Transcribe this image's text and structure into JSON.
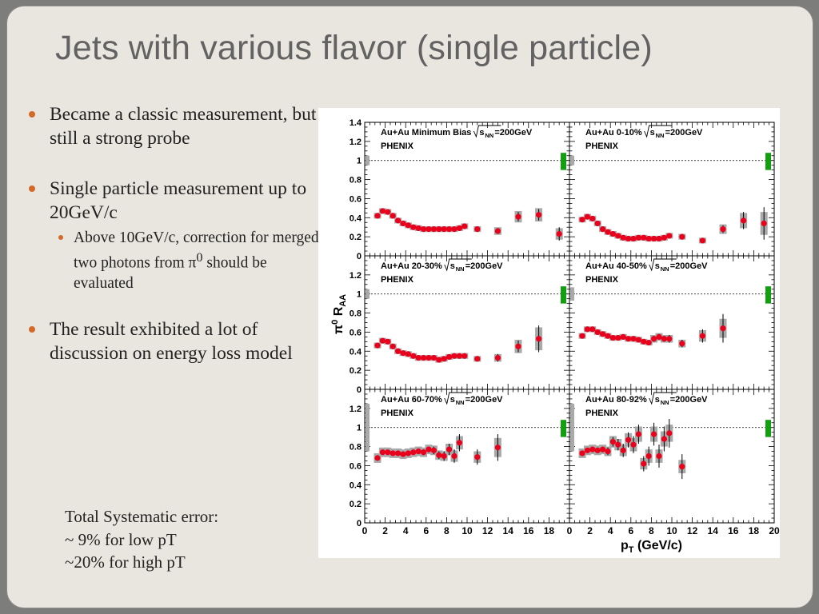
{
  "slide": {
    "title": "Jets with various flavor (single particle)",
    "bullets": [
      "Became a classic measurement, but still a strong probe",
      "Single particle measurement up to 20GeV/c",
      "Above 10GeV/c, correction for merged two photons from π",
      "The result exhibited a lot of discussion on energy loss model"
    ],
    "sub_suffix": " should be evaluated",
    "sup0": "0",
    "note": [
      "Total Systematic error:",
      "~ 9% for low pT",
      "~20% for high pT"
    ]
  },
  "chart_data": {
    "type": "scatter",
    "ylabel": "π0 RAA",
    "xlabel": "pT (GeV/c)",
    "xlim": [
      0,
      20
    ],
    "ylim": [
      0,
      1.4
    ],
    "reference_line": 1,
    "colors": {
      "points": "#e8001c",
      "syst_box": "#a9a9a9",
      "norm_box_right": "#12a012",
      "norm_box_left": "#a9a9a9"
    },
    "x_tick_labels_left": [
      "0",
      "2",
      "4",
      "6",
      "8",
      "10",
      "12",
      "14",
      "16",
      "18"
    ],
    "x_tick_labels_right": [
      "0",
      "2",
      "4",
      "6",
      "8",
      "10",
      "12",
      "14",
      "16",
      "18",
      "20"
    ],
    "y_tick_labels": [
      "0",
      "0.2",
      "0.4",
      "0.6",
      "0.8",
      "1",
      "1.2",
      "1.4"
    ],
    "panels": [
      {
        "label": "Au+Au Minimum Bias",
        "energy": "=200GeV",
        "experiment": "PHENIX",
        "norm_left": [
          0.95,
          1.05
        ],
        "norm_right": [
          0.9,
          1.08
        ],
        "points": [
          {
            "x": 1.25,
            "y": 0.42,
            "syst": 0.03,
            "err": 0.01
          },
          {
            "x": 1.75,
            "y": 0.47,
            "syst": 0.03,
            "err": 0.01
          },
          {
            "x": 2.25,
            "y": 0.46,
            "syst": 0.03,
            "err": 0.01
          },
          {
            "x": 2.75,
            "y": 0.42,
            "syst": 0.03,
            "err": 0.01
          },
          {
            "x": 3.25,
            "y": 0.37,
            "syst": 0.03,
            "err": 0.01
          },
          {
            "x": 3.75,
            "y": 0.34,
            "syst": 0.03,
            "err": 0.01
          },
          {
            "x": 4.25,
            "y": 0.32,
            "syst": 0.03,
            "err": 0.01
          },
          {
            "x": 4.75,
            "y": 0.3,
            "syst": 0.03,
            "err": 0.01
          },
          {
            "x": 5.25,
            "y": 0.29,
            "syst": 0.03,
            "err": 0.01
          },
          {
            "x": 5.75,
            "y": 0.28,
            "syst": 0.03,
            "err": 0.01
          },
          {
            "x": 6.25,
            "y": 0.28,
            "syst": 0.03,
            "err": 0.01
          },
          {
            "x": 6.75,
            "y": 0.28,
            "syst": 0.03,
            "err": 0.01
          },
          {
            "x": 7.25,
            "y": 0.28,
            "syst": 0.03,
            "err": 0.01
          },
          {
            "x": 7.75,
            "y": 0.28,
            "syst": 0.03,
            "err": 0.01
          },
          {
            "x": 8.25,
            "y": 0.28,
            "syst": 0.03,
            "err": 0.01
          },
          {
            "x": 8.75,
            "y": 0.28,
            "syst": 0.03,
            "err": 0.01
          },
          {
            "x": 9.25,
            "y": 0.29,
            "syst": 0.03,
            "err": 0.01
          },
          {
            "x": 9.75,
            "y": 0.31,
            "syst": 0.03,
            "err": 0.02
          },
          {
            "x": 11,
            "y": 0.28,
            "syst": 0.03,
            "err": 0.02
          },
          {
            "x": 13,
            "y": 0.26,
            "syst": 0.04,
            "err": 0.03
          },
          {
            "x": 15,
            "y": 0.41,
            "syst": 0.06,
            "err": 0.05
          },
          {
            "x": 17,
            "y": 0.43,
            "syst": 0.07,
            "err": 0.06
          },
          {
            "x": 19,
            "y": 0.23,
            "syst": 0.06,
            "err": 0.07
          }
        ]
      },
      {
        "label": "Au+Au 0-10%",
        "energy": "=200GeV",
        "experiment": "PHENIX",
        "norm_left": [
          0.95,
          1.05
        ],
        "norm_right": [
          0.9,
          1.08
        ],
        "points": [
          {
            "x": 1.25,
            "y": 0.38,
            "syst": 0.03,
            "err": 0.01
          },
          {
            "x": 1.75,
            "y": 0.41,
            "syst": 0.03,
            "err": 0.01
          },
          {
            "x": 2.25,
            "y": 0.39,
            "syst": 0.03,
            "err": 0.01
          },
          {
            "x": 2.75,
            "y": 0.34,
            "syst": 0.03,
            "err": 0.01
          },
          {
            "x": 3.25,
            "y": 0.28,
            "syst": 0.03,
            "err": 0.01
          },
          {
            "x": 3.75,
            "y": 0.25,
            "syst": 0.03,
            "err": 0.01
          },
          {
            "x": 4.25,
            "y": 0.23,
            "syst": 0.03,
            "err": 0.01
          },
          {
            "x": 4.75,
            "y": 0.21,
            "syst": 0.03,
            "err": 0.01
          },
          {
            "x": 5.25,
            "y": 0.19,
            "syst": 0.03,
            "err": 0.01
          },
          {
            "x": 5.75,
            "y": 0.18,
            "syst": 0.03,
            "err": 0.01
          },
          {
            "x": 6.25,
            "y": 0.18,
            "syst": 0.03,
            "err": 0.01
          },
          {
            "x": 6.75,
            "y": 0.19,
            "syst": 0.03,
            "err": 0.01
          },
          {
            "x": 7.25,
            "y": 0.19,
            "syst": 0.03,
            "err": 0.01
          },
          {
            "x": 7.75,
            "y": 0.18,
            "syst": 0.03,
            "err": 0.01
          },
          {
            "x": 8.25,
            "y": 0.18,
            "syst": 0.03,
            "err": 0.01
          },
          {
            "x": 8.75,
            "y": 0.18,
            "syst": 0.03,
            "err": 0.01
          },
          {
            "x": 9.25,
            "y": 0.19,
            "syst": 0.03,
            "err": 0.01
          },
          {
            "x": 9.75,
            "y": 0.21,
            "syst": 0.03,
            "err": 0.02
          },
          {
            "x": 11,
            "y": 0.2,
            "syst": 0.03,
            "err": 0.02
          },
          {
            "x": 13,
            "y": 0.16,
            "syst": 0.03,
            "err": 0.02
          },
          {
            "x": 15,
            "y": 0.28,
            "syst": 0.05,
            "err": 0.04
          },
          {
            "x": 17,
            "y": 0.37,
            "syst": 0.08,
            "err": 0.09
          },
          {
            "x": 19,
            "y": 0.34,
            "syst": 0.12,
            "err": 0.17
          }
        ]
      },
      {
        "label": "Au+Au 20-30%",
        "energy": "=200GeV",
        "experiment": "PHENIX",
        "norm_left": [
          0.95,
          1.05
        ],
        "norm_right": [
          0.9,
          1.08
        ],
        "points": [
          {
            "x": 1.25,
            "y": 0.46,
            "syst": 0.03,
            "err": 0.01
          },
          {
            "x": 1.75,
            "y": 0.51,
            "syst": 0.03,
            "err": 0.01
          },
          {
            "x": 2.25,
            "y": 0.5,
            "syst": 0.03,
            "err": 0.01
          },
          {
            "x": 2.75,
            "y": 0.45,
            "syst": 0.03,
            "err": 0.01
          },
          {
            "x": 3.25,
            "y": 0.4,
            "syst": 0.03,
            "err": 0.01
          },
          {
            "x": 3.75,
            "y": 0.38,
            "syst": 0.03,
            "err": 0.01
          },
          {
            "x": 4.25,
            "y": 0.37,
            "syst": 0.03,
            "err": 0.01
          },
          {
            "x": 4.75,
            "y": 0.35,
            "syst": 0.03,
            "err": 0.01
          },
          {
            "x": 5.25,
            "y": 0.33,
            "syst": 0.03,
            "err": 0.01
          },
          {
            "x": 5.75,
            "y": 0.33,
            "syst": 0.03,
            "err": 0.01
          },
          {
            "x": 6.25,
            "y": 0.33,
            "syst": 0.03,
            "err": 0.01
          },
          {
            "x": 6.75,
            "y": 0.33,
            "syst": 0.03,
            "err": 0.01
          },
          {
            "x": 7.25,
            "y": 0.31,
            "syst": 0.03,
            "err": 0.01
          },
          {
            "x": 7.75,
            "y": 0.32,
            "syst": 0.03,
            "err": 0.01
          },
          {
            "x": 8.25,
            "y": 0.34,
            "syst": 0.03,
            "err": 0.01
          },
          {
            "x": 8.75,
            "y": 0.35,
            "syst": 0.03,
            "err": 0.01
          },
          {
            "x": 9.25,
            "y": 0.35,
            "syst": 0.03,
            "err": 0.01
          },
          {
            "x": 9.75,
            "y": 0.35,
            "syst": 0.03,
            "err": 0.02
          },
          {
            "x": 11,
            "y": 0.32,
            "syst": 0.03,
            "err": 0.02
          },
          {
            "x": 13,
            "y": 0.33,
            "syst": 0.04,
            "err": 0.04
          },
          {
            "x": 15,
            "y": 0.45,
            "syst": 0.07,
            "err": 0.06
          },
          {
            "x": 17,
            "y": 0.53,
            "syst": 0.12,
            "err": 0.14
          }
        ]
      },
      {
        "label": "Au+Au 40-50%",
        "energy": "=200GeV",
        "experiment": "PHENIX",
        "norm_left": [
          0.93,
          1.07
        ],
        "norm_right": [
          0.9,
          1.08
        ],
        "points": [
          {
            "x": 1.25,
            "y": 0.56,
            "syst": 0.03,
            "err": 0.01
          },
          {
            "x": 1.75,
            "y": 0.63,
            "syst": 0.03,
            "err": 0.01
          },
          {
            "x": 2.25,
            "y": 0.63,
            "syst": 0.03,
            "err": 0.01
          },
          {
            "x": 2.75,
            "y": 0.6,
            "syst": 0.03,
            "err": 0.01
          },
          {
            "x": 3.25,
            "y": 0.58,
            "syst": 0.03,
            "err": 0.01
          },
          {
            "x": 3.75,
            "y": 0.56,
            "syst": 0.03,
            "err": 0.01
          },
          {
            "x": 4.25,
            "y": 0.54,
            "syst": 0.03,
            "err": 0.01
          },
          {
            "x": 4.75,
            "y": 0.54,
            "syst": 0.03,
            "err": 0.01
          },
          {
            "x": 5.25,
            "y": 0.55,
            "syst": 0.03,
            "err": 0.01
          },
          {
            "x": 5.75,
            "y": 0.53,
            "syst": 0.03,
            "err": 0.01
          },
          {
            "x": 6.25,
            "y": 0.53,
            "syst": 0.03,
            "err": 0.01
          },
          {
            "x": 6.75,
            "y": 0.52,
            "syst": 0.03,
            "err": 0.02
          },
          {
            "x": 7.25,
            "y": 0.5,
            "syst": 0.03,
            "err": 0.02
          },
          {
            "x": 7.75,
            "y": 0.49,
            "syst": 0.03,
            "err": 0.02
          },
          {
            "x": 8.25,
            "y": 0.53,
            "syst": 0.04,
            "err": 0.03
          },
          {
            "x": 8.75,
            "y": 0.55,
            "syst": 0.04,
            "err": 0.03
          },
          {
            "x": 9.25,
            "y": 0.53,
            "syst": 0.04,
            "err": 0.03
          },
          {
            "x": 9.75,
            "y": 0.53,
            "syst": 0.04,
            "err": 0.04
          },
          {
            "x": 11,
            "y": 0.48,
            "syst": 0.04,
            "err": 0.04
          },
          {
            "x": 13,
            "y": 0.56,
            "syst": 0.06,
            "err": 0.07
          },
          {
            "x": 15,
            "y": 0.64,
            "syst": 0.1,
            "err": 0.15
          }
        ]
      },
      {
        "label": "Au+Au 60-70%",
        "energy": "=200GeV",
        "experiment": "PHENIX",
        "norm_left": [
          0.75,
          1.25
        ],
        "norm_right": [
          0.9,
          1.08
        ],
        "points": [
          {
            "x": 1.25,
            "y": 0.68,
            "syst": 0.05,
            "err": 0.01
          },
          {
            "x": 1.75,
            "y": 0.74,
            "syst": 0.05,
            "err": 0.01
          },
          {
            "x": 2.25,
            "y": 0.74,
            "syst": 0.05,
            "err": 0.01
          },
          {
            "x": 2.75,
            "y": 0.73,
            "syst": 0.05,
            "err": 0.01
          },
          {
            "x": 3.25,
            "y": 0.73,
            "syst": 0.05,
            "err": 0.01
          },
          {
            "x": 3.75,
            "y": 0.72,
            "syst": 0.05,
            "err": 0.02
          },
          {
            "x": 4.25,
            "y": 0.73,
            "syst": 0.05,
            "err": 0.02
          },
          {
            "x": 4.75,
            "y": 0.74,
            "syst": 0.05,
            "err": 0.02
          },
          {
            "x": 5.25,
            "y": 0.75,
            "syst": 0.05,
            "err": 0.02
          },
          {
            "x": 5.75,
            "y": 0.74,
            "syst": 0.05,
            "err": 0.03
          },
          {
            "x": 6.25,
            "y": 0.77,
            "syst": 0.05,
            "err": 0.03
          },
          {
            "x": 6.75,
            "y": 0.76,
            "syst": 0.05,
            "err": 0.04
          },
          {
            "x": 7.25,
            "y": 0.71,
            "syst": 0.05,
            "err": 0.04
          },
          {
            "x": 7.75,
            "y": 0.7,
            "syst": 0.05,
            "err": 0.05
          },
          {
            "x": 8.25,
            "y": 0.77,
            "syst": 0.06,
            "err": 0.06
          },
          {
            "x": 8.75,
            "y": 0.7,
            "syst": 0.06,
            "err": 0.07
          },
          {
            "x": 9.25,
            "y": 0.84,
            "syst": 0.07,
            "err": 0.09
          },
          {
            "x": 11,
            "y": 0.69,
            "syst": 0.06,
            "err": 0.08
          },
          {
            "x": 13,
            "y": 0.79,
            "syst": 0.1,
            "err": 0.14
          }
        ]
      },
      {
        "label": "Au+Au 80-92%",
        "energy": "=200GeV",
        "experiment": "PHENIX",
        "norm_left": [
          0.75,
          1.25
        ],
        "norm_right": [
          0.9,
          1.08
        ],
        "points": [
          {
            "x": 1.25,
            "y": 0.73,
            "syst": 0.05,
            "err": 0.02
          },
          {
            "x": 1.75,
            "y": 0.76,
            "syst": 0.05,
            "err": 0.02
          },
          {
            "x": 2.25,
            "y": 0.77,
            "syst": 0.05,
            "err": 0.02
          },
          {
            "x": 2.75,
            "y": 0.76,
            "syst": 0.05,
            "err": 0.03
          },
          {
            "x": 3.25,
            "y": 0.77,
            "syst": 0.05,
            "err": 0.03
          },
          {
            "x": 3.75,
            "y": 0.75,
            "syst": 0.05,
            "err": 0.04
          },
          {
            "x": 4.25,
            "y": 0.85,
            "syst": 0.06,
            "err": 0.05
          },
          {
            "x": 4.75,
            "y": 0.82,
            "syst": 0.06,
            "err": 0.06
          },
          {
            "x": 5.25,
            "y": 0.76,
            "syst": 0.06,
            "err": 0.07
          },
          {
            "x": 5.75,
            "y": 0.87,
            "syst": 0.07,
            "err": 0.08
          },
          {
            "x": 6.25,
            "y": 0.82,
            "syst": 0.07,
            "err": 0.09
          },
          {
            "x": 6.75,
            "y": 0.93,
            "syst": 0.08,
            "err": 0.1
          },
          {
            "x": 7.25,
            "y": 0.62,
            "syst": 0.06,
            "err": 0.08
          },
          {
            "x": 7.75,
            "y": 0.7,
            "syst": 0.07,
            "err": 0.1
          },
          {
            "x": 8.25,
            "y": 0.93,
            "syst": 0.08,
            "err": 0.12
          },
          {
            "x": 8.75,
            "y": 0.7,
            "syst": 0.07,
            "err": 0.12
          },
          {
            "x": 9.25,
            "y": 0.88,
            "syst": 0.08,
            "err": 0.13
          },
          {
            "x": 9.75,
            "y": 0.94,
            "syst": 0.09,
            "err": 0.15
          },
          {
            "x": 11,
            "y": 0.59,
            "syst": 0.07,
            "err": 0.13
          }
        ]
      }
    ]
  }
}
